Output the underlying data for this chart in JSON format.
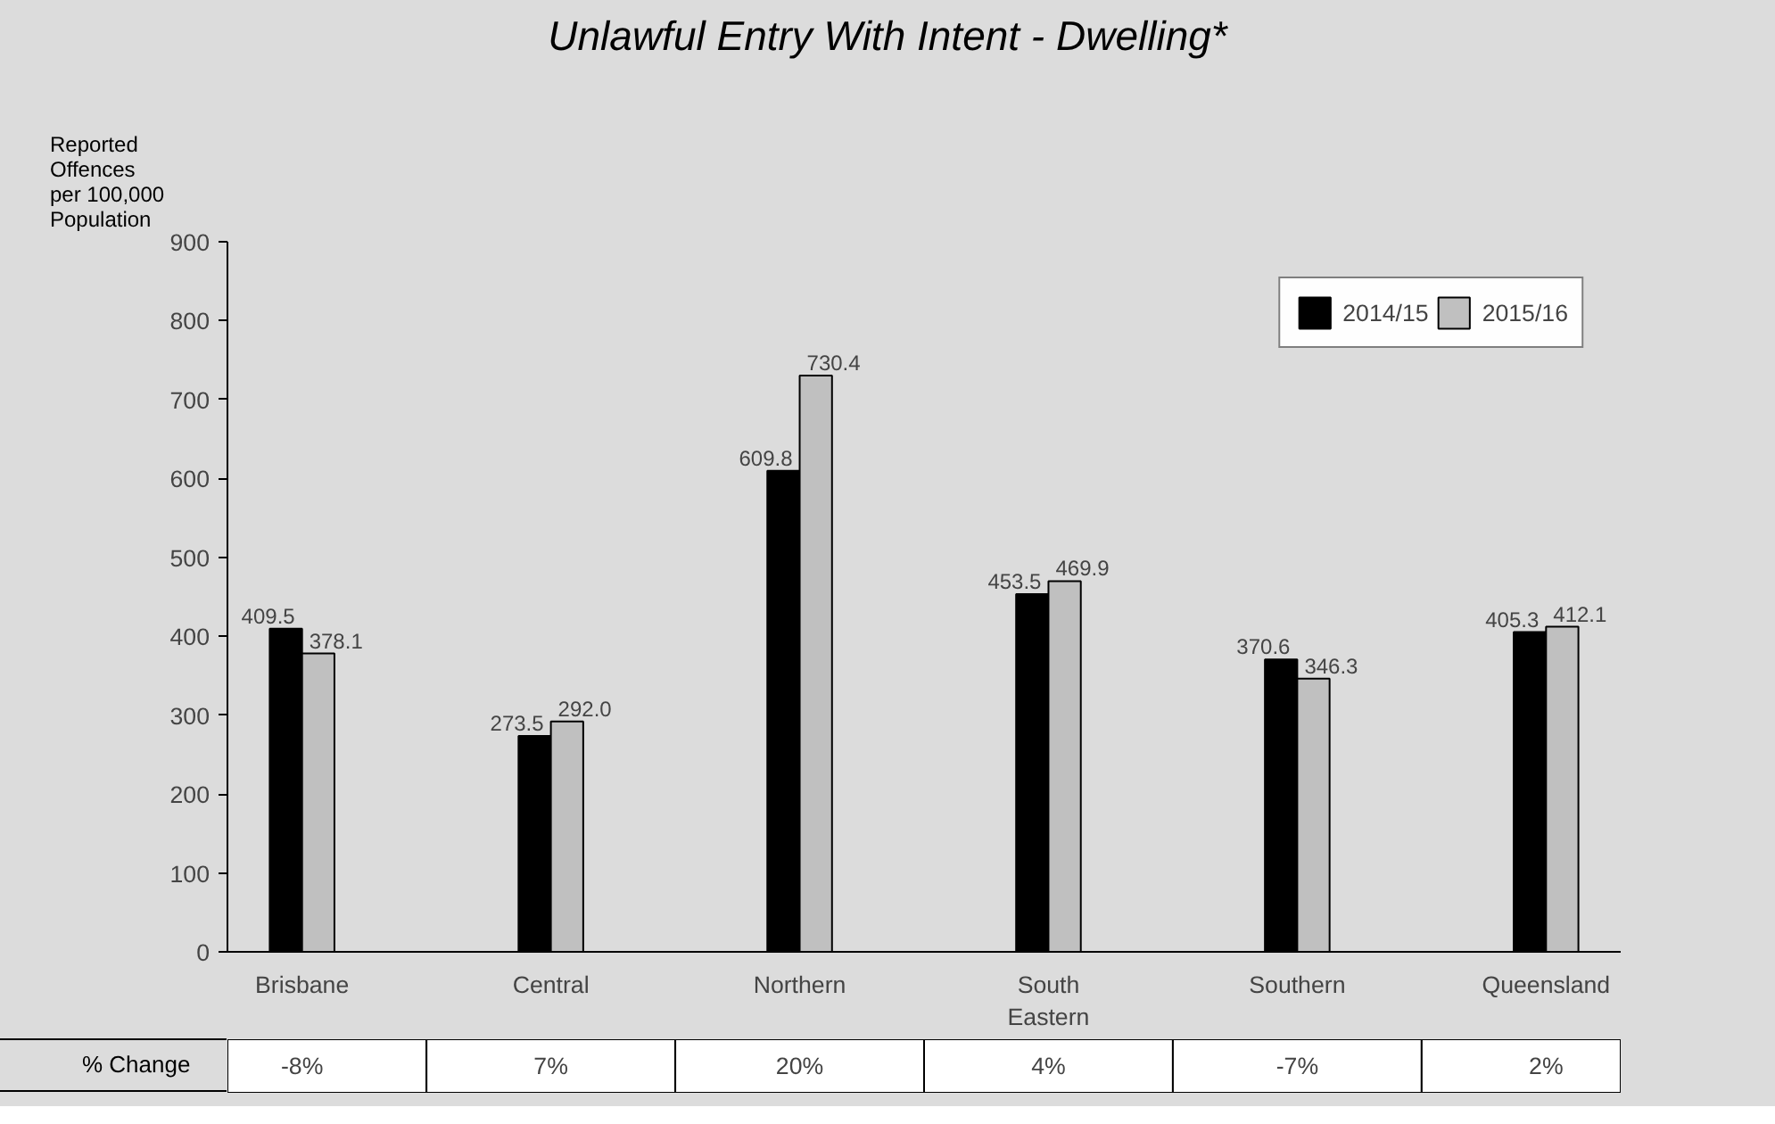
{
  "chart_data": {
    "type": "bar",
    "title": "Unlawful Entry With Intent - Dwelling*",
    "ylabel": "Reported\nOffences\nper 100,000\nPopulation",
    "categories": [
      "Brisbane",
      "Central",
      "Northern",
      "South\nEastern",
      "Southern",
      "Queensland"
    ],
    "series": [
      {
        "name": "2014/15",
        "color": "#000000",
        "values": [
          409.5,
          273.5,
          609.8,
          453.5,
          370.6,
          405.3
        ]
      },
      {
        "name": "2015/16",
        "color": "#c0c0c0",
        "values": [
          378.1,
          292.0,
          730.4,
          469.9,
          346.3,
          412.1
        ]
      }
    ],
    "value_labels": [
      [
        "409.5",
        "273.5",
        "609.8",
        "453.5",
        "370.6",
        "405.3"
      ],
      [
        "378.1",
        "292.0",
        "730.4",
        "469.9",
        "346.3",
        "412.1"
      ]
    ],
    "ylim": [
      0,
      900
    ],
    "yticks": [
      0,
      100,
      200,
      300,
      400,
      500,
      600,
      700,
      800,
      900
    ],
    "grid": false,
    "legend": "top right",
    "annotations": [
      "% Change",
      "-8%",
      "7%",
      "20%",
      "4%",
      "-7%",
      "2%"
    ]
  }
}
